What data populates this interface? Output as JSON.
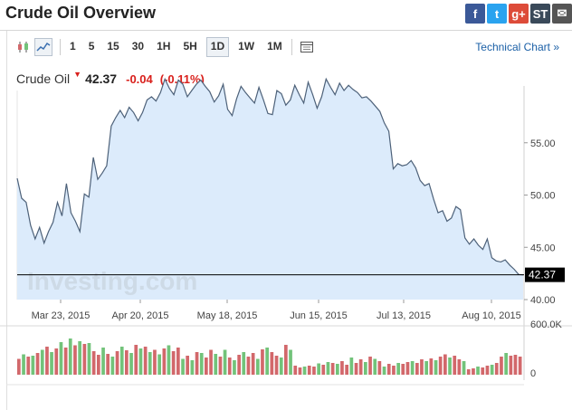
{
  "header": {
    "title": "Crude Oil Overview",
    "social": [
      {
        "name": "facebook-share-icon",
        "glyph": "f",
        "color": "#3b5998"
      },
      {
        "name": "twitter-share-icon",
        "glyph": "t",
        "color": "#2aa3ef"
      },
      {
        "name": "google-plus-share-icon",
        "glyph": "g+",
        "color": "#dd4b39"
      },
      {
        "name": "stocktwits-share-icon",
        "glyph": "ST",
        "color": "#3a4a5a"
      },
      {
        "name": "email-share-icon",
        "glyph": "✉",
        "color": "#555555"
      }
    ]
  },
  "toolbar": {
    "timeframes": [
      "1",
      "5",
      "15",
      "30",
      "1H",
      "5H",
      "1D",
      "1W",
      "1M"
    ],
    "active_timeframe": "1D",
    "technical_chart": "Technical Chart »"
  },
  "quote": {
    "name": "Crude Oil",
    "price": "42.37",
    "change": "-0.04",
    "change_pct": "(-0.11%)"
  },
  "chart_data": {
    "type": "area",
    "x_tick_labels": [
      "Mar 23, 2015",
      "Apr 20, 2015",
      "May 18, 2015",
      "Jun 15, 2015",
      "Jul 13, 2015",
      "Aug 10, 2015"
    ],
    "y_tick_labels": [
      "55.00",
      "50.00",
      "45.00",
      "40.00"
    ],
    "ylim": [
      40,
      60
    ],
    "last_price_label": "42.37",
    "watermark": "Investing.com",
    "area_color": "#dcebfb",
    "line_color": "#4d6179",
    "up_color": "#72c37a",
    "down_color": "#d2686b",
    "series": [
      {
        "values": [
          51.6,
          49.7,
          49.3,
          47.1,
          45.8,
          46.9,
          45.4,
          46.5,
          47.4,
          49.3,
          48.0,
          51.1,
          48.3,
          47.5,
          46.5,
          50.1,
          49.8,
          53.6,
          51.5,
          52.1,
          52.8,
          56.6,
          57.4,
          58.1,
          57.4,
          58.4,
          57.9,
          57.1,
          57.9,
          59.1,
          59.4,
          59.0,
          59.8,
          61.1,
          60.2,
          59.6,
          61.0,
          60.6,
          59.4,
          60.0,
          60.6,
          61.0,
          60.4,
          59.9,
          58.9,
          59.5,
          60.6,
          58.2,
          57.6,
          59.2,
          60.4,
          59.8,
          59.3,
          58.8,
          60.3,
          59.1,
          57.8,
          57.7,
          60.0,
          59.7,
          58.6,
          59.1,
          60.5,
          59.6,
          58.8,
          60.8,
          59.6,
          58.3,
          59.4,
          61.1,
          60.3,
          59.6,
          60.7,
          60.0,
          60.5,
          60.1,
          59.8,
          59.3,
          59.4,
          59.0,
          58.5,
          58.0,
          56.9,
          56.1,
          52.5,
          53.0,
          52.8,
          52.9,
          53.3,
          52.6,
          51.4,
          50.9,
          51.1,
          49.6,
          48.3,
          48.5,
          47.5,
          47.8,
          48.9,
          48.6,
          45.9,
          45.3,
          45.8,
          45.2,
          44.8,
          45.8,
          44.0,
          43.7,
          43.6,
          43.8,
          43.3,
          42.9,
          42.4,
          42.37
        ]
      }
    ],
    "volume": {
      "ytick_labels": [
        "600.0K",
        "0"
      ],
      "bars": [
        {
          "v": 0.35,
          "up": false
        },
        {
          "v": 0.45,
          "up": true
        },
        {
          "v": 0.4,
          "up": false
        },
        {
          "v": 0.42,
          "up": true
        },
        {
          "v": 0.48,
          "up": false
        },
        {
          "v": 0.55,
          "up": true
        },
        {
          "v": 0.62,
          "up": false
        },
        {
          "v": 0.5,
          "up": true
        },
        {
          "v": 0.58,
          "up": false
        },
        {
          "v": 0.72,
          "up": true
        },
        {
          "v": 0.6,
          "up": false
        },
        {
          "v": 0.8,
          "up": true
        },
        {
          "v": 0.65,
          "up": false
        },
        {
          "v": 0.74,
          "up": true
        },
        {
          "v": 0.68,
          "up": false
        },
        {
          "v": 0.7,
          "up": true
        },
        {
          "v": 0.52,
          "up": false
        },
        {
          "v": 0.44,
          "up": false
        },
        {
          "v": 0.6,
          "up": true
        },
        {
          "v": 0.46,
          "up": false
        },
        {
          "v": 0.4,
          "up": true
        },
        {
          "v": 0.52,
          "up": false
        },
        {
          "v": 0.62,
          "up": true
        },
        {
          "v": 0.54,
          "up": false
        },
        {
          "v": 0.48,
          "up": true
        },
        {
          "v": 0.66,
          "up": false
        },
        {
          "v": 0.58,
          "up": true
        },
        {
          "v": 0.62,
          "up": false
        },
        {
          "v": 0.5,
          "up": true
        },
        {
          "v": 0.55,
          "up": false
        },
        {
          "v": 0.45,
          "up": true
        },
        {
          "v": 0.58,
          "up": false
        },
        {
          "v": 0.65,
          "up": true
        },
        {
          "v": 0.52,
          "up": false
        },
        {
          "v": 0.6,
          "up": false
        },
        {
          "v": 0.35,
          "up": true
        },
        {
          "v": 0.42,
          "up": false
        },
        {
          "v": 0.32,
          "up": true
        },
        {
          "v": 0.5,
          "up": false
        },
        {
          "v": 0.48,
          "up": true
        },
        {
          "v": 0.38,
          "up": false
        },
        {
          "v": 0.55,
          "up": false
        },
        {
          "v": 0.46,
          "up": true
        },
        {
          "v": 0.4,
          "up": false
        },
        {
          "v": 0.55,
          "up": true
        },
        {
          "v": 0.38,
          "up": false
        },
        {
          "v": 0.32,
          "up": true
        },
        {
          "v": 0.44,
          "up": false
        },
        {
          "v": 0.5,
          "up": true
        },
        {
          "v": 0.4,
          "up": false
        },
        {
          "v": 0.48,
          "up": false
        },
        {
          "v": 0.35,
          "up": true
        },
        {
          "v": 0.56,
          "up": false
        },
        {
          "v": 0.6,
          "up": true
        },
        {
          "v": 0.5,
          "up": false
        },
        {
          "v": 0.42,
          "up": false
        },
        {
          "v": 0.38,
          "up": true
        },
        {
          "v": 0.66,
          "up": false
        },
        {
          "v": 0.55,
          "up": true
        },
        {
          "v": 0.2,
          "up": false
        },
        {
          "v": 0.16,
          "up": false
        },
        {
          "v": 0.18,
          "up": true
        },
        {
          "v": 0.2,
          "up": false
        },
        {
          "v": 0.18,
          "up": false
        },
        {
          "v": 0.25,
          "up": true
        },
        {
          "v": 0.22,
          "up": false
        },
        {
          "v": 0.28,
          "up": true
        },
        {
          "v": 0.26,
          "up": false
        },
        {
          "v": 0.24,
          "up": true
        },
        {
          "v": 0.3,
          "up": false
        },
        {
          "v": 0.22,
          "up": false
        },
        {
          "v": 0.38,
          "up": true
        },
        {
          "v": 0.26,
          "up": false
        },
        {
          "v": 0.34,
          "up": false
        },
        {
          "v": 0.28,
          "up": true
        },
        {
          "v": 0.4,
          "up": false
        },
        {
          "v": 0.35,
          "up": true
        },
        {
          "v": 0.3,
          "up": false
        },
        {
          "v": 0.18,
          "up": true
        },
        {
          "v": 0.24,
          "up": false
        },
        {
          "v": 0.2,
          "up": false
        },
        {
          "v": 0.26,
          "up": true
        },
        {
          "v": 0.24,
          "up": false
        },
        {
          "v": 0.28,
          "up": false
        },
        {
          "v": 0.3,
          "up": true
        },
        {
          "v": 0.26,
          "up": false
        },
        {
          "v": 0.34,
          "up": false
        },
        {
          "v": 0.3,
          "up": true
        },
        {
          "v": 0.36,
          "up": false
        },
        {
          "v": 0.32,
          "up": true
        },
        {
          "v": 0.4,
          "up": false
        },
        {
          "v": 0.45,
          "up": false
        },
        {
          "v": 0.38,
          "up": true
        },
        {
          "v": 0.42,
          "up": false
        },
        {
          "v": 0.34,
          "up": false
        },
        {
          "v": 0.3,
          "up": true
        },
        {
          "v": 0.12,
          "up": false
        },
        {
          "v": 0.14,
          "up": false
        },
        {
          "v": 0.18,
          "up": true
        },
        {
          "v": 0.16,
          "up": false
        },
        {
          "v": 0.2,
          "up": false
        },
        {
          "v": 0.22,
          "up": true
        },
        {
          "v": 0.26,
          "up": false
        },
        {
          "v": 0.4,
          "up": false
        },
        {
          "v": 0.48,
          "up": true
        },
        {
          "v": 0.42,
          "up": false
        },
        {
          "v": 0.44,
          "up": false
        },
        {
          "v": 0.4,
          "up": false
        }
      ]
    }
  }
}
